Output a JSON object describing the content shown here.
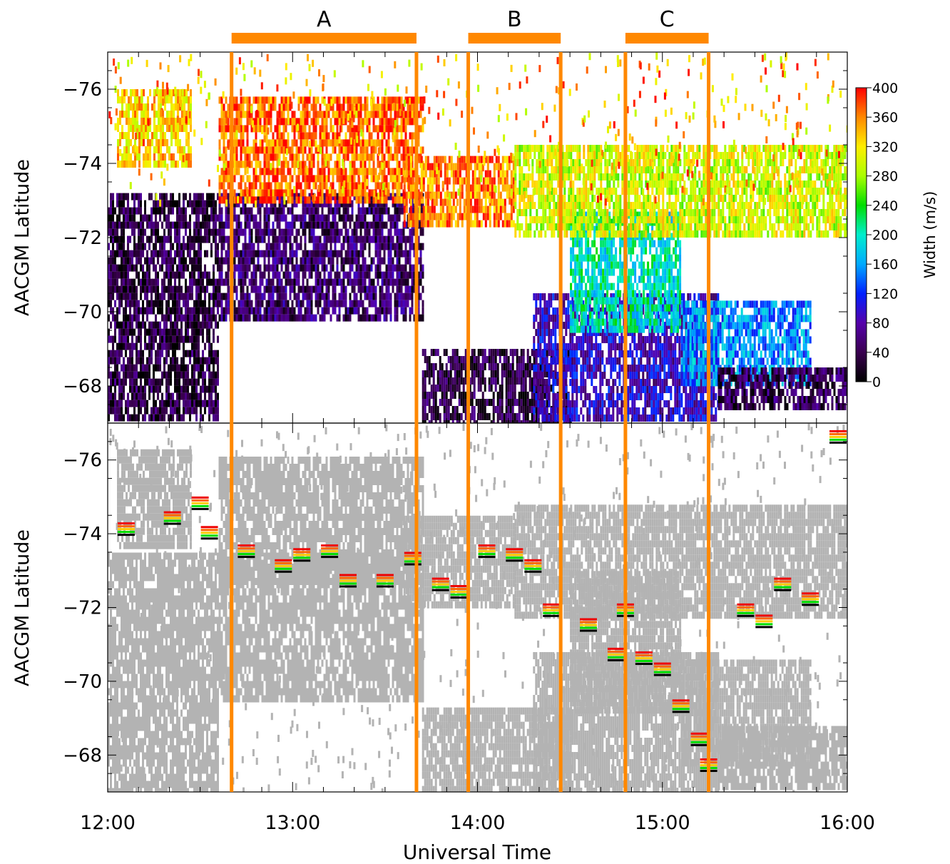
{
  "chart_data": [
    {
      "type": "heatmap",
      "panel": "top",
      "ylabel": "AACGM Latitude",
      "ylim": [
        -67,
        -77
      ],
      "yticks": [
        -76,
        -74,
        -72,
        -70,
        -68
      ],
      "ytick_labels": [
        "−76",
        "−74",
        "−72",
        "−70",
        "−68"
      ],
      "colorbar": {
        "label": "Width (m/s)",
        "range": [
          0,
          400
        ],
        "ticks": [
          0,
          40,
          80,
          120,
          160,
          200,
          240,
          280,
          320,
          360,
          400
        ],
        "tick_labels": [
          "0",
          "40",
          "80",
          "120",
          "160",
          "200",
          "240",
          "280",
          "320",
          "360",
          "400"
        ]
      },
      "regions": [
        {
          "t0": 12.0,
          "t1": 12.6,
          "lat0": -67.2,
          "lat1": -73.2,
          "value": 30
        },
        {
          "t0": 12.05,
          "t1": 12.45,
          "lat0": -74.0,
          "lat1": -76.0,
          "value": 330
        },
        {
          "t0": 12.6,
          "t1": 13.7,
          "lat0": -69.8,
          "lat1": -73.2,
          "value": 50
        },
        {
          "t0": 12.6,
          "t1": 13.7,
          "lat0": -73.0,
          "lat1": -75.8,
          "value": 370
        },
        {
          "t0": 13.7,
          "t1": 14.5,
          "lat0": -67.0,
          "lat1": -69.0,
          "value": 30
        },
        {
          "t0": 13.6,
          "t1": 14.2,
          "lat0": -72.3,
          "lat1": -74.2,
          "value": 360
        },
        {
          "t0": 14.3,
          "t1": 15.3,
          "lat0": -67.2,
          "lat1": -70.5,
          "value": 90
        },
        {
          "t0": 14.5,
          "t1": 15.1,
          "lat0": -69.5,
          "lat1": -72.7,
          "value": 200
        },
        {
          "t0": 14.2,
          "t1": 16.0,
          "lat0": -72.0,
          "lat1": -74.5,
          "value": 300
        },
        {
          "t0": 15.1,
          "t1": 15.8,
          "lat0": -68.0,
          "lat1": -70.3,
          "value": 150
        },
        {
          "t0": 15.3,
          "t1": 16.0,
          "lat0": -67.5,
          "lat1": -68.5,
          "value": 40
        }
      ]
    },
    {
      "type": "scatter",
      "panel": "bottom",
      "xlabel": "Universal Time",
      "ylabel": "AACGM Latitude",
      "xlim": [
        12,
        16
      ],
      "ylim": [
        -67,
        -77
      ],
      "xticks": [
        12,
        13,
        14,
        15,
        16
      ],
      "xtick_labels": [
        "12:00",
        "13:00",
        "14:00",
        "15:00",
        "16:00"
      ],
      "yticks": [
        -76,
        -74,
        -72,
        -70,
        -68
      ],
      "ytick_labels": [
        "−76",
        "−74",
        "−72",
        "−70",
        "−68"
      ],
      "background_color": "#b3b3b3",
      "boundary_points": [
        {
          "t": 12.1,
          "lat": -74.0
        },
        {
          "t": 12.35,
          "lat": -74.3
        },
        {
          "t": 12.5,
          "lat": -74.7
        },
        {
          "t": 12.55,
          "lat": -73.9
        },
        {
          "t": 12.75,
          "lat": -73.4
        },
        {
          "t": 12.95,
          "lat": -73.0
        },
        {
          "t": 13.05,
          "lat": -73.3
        },
        {
          "t": 13.2,
          "lat": -73.4
        },
        {
          "t": 13.3,
          "lat": -72.6
        },
        {
          "t": 13.5,
          "lat": -72.6
        },
        {
          "t": 13.65,
          "lat": -73.2
        },
        {
          "t": 13.8,
          "lat": -72.5
        },
        {
          "t": 13.9,
          "lat": -72.3
        },
        {
          "t": 14.05,
          "lat": -73.4
        },
        {
          "t": 14.2,
          "lat": -73.3
        },
        {
          "t": 14.3,
          "lat": -73.0
        },
        {
          "t": 14.4,
          "lat": -71.8
        },
        {
          "t": 14.6,
          "lat": -71.4
        },
        {
          "t": 14.75,
          "lat": -70.6
        },
        {
          "t": 14.8,
          "lat": -71.8
        },
        {
          "t": 14.9,
          "lat": -70.5
        },
        {
          "t": 15.0,
          "lat": -70.2
        },
        {
          "t": 15.1,
          "lat": -69.2
        },
        {
          "t": 15.2,
          "lat": -68.3
        },
        {
          "t": 15.25,
          "lat": -67.6
        },
        {
          "t": 15.45,
          "lat": -71.8
        },
        {
          "t": 15.55,
          "lat": -71.5
        },
        {
          "t": 15.65,
          "lat": -72.5
        },
        {
          "t": 15.8,
          "lat": -72.1
        },
        {
          "t": 15.95,
          "lat": -76.5
        }
      ]
    }
  ],
  "intervals": [
    {
      "label": "A",
      "start": 12.67,
      "end": 13.67
    },
    {
      "label": "B",
      "start": 13.95,
      "end": 14.45
    },
    {
      "label": "C",
      "start": 14.8,
      "end": 15.25
    }
  ],
  "colors": {
    "interval": "#ff8800",
    "scatter": "#b3b3b3",
    "boundary_colors": [
      "#000000",
      "#00dd00",
      "#ffcc00",
      "#ff6600",
      "#ee0000"
    ]
  }
}
